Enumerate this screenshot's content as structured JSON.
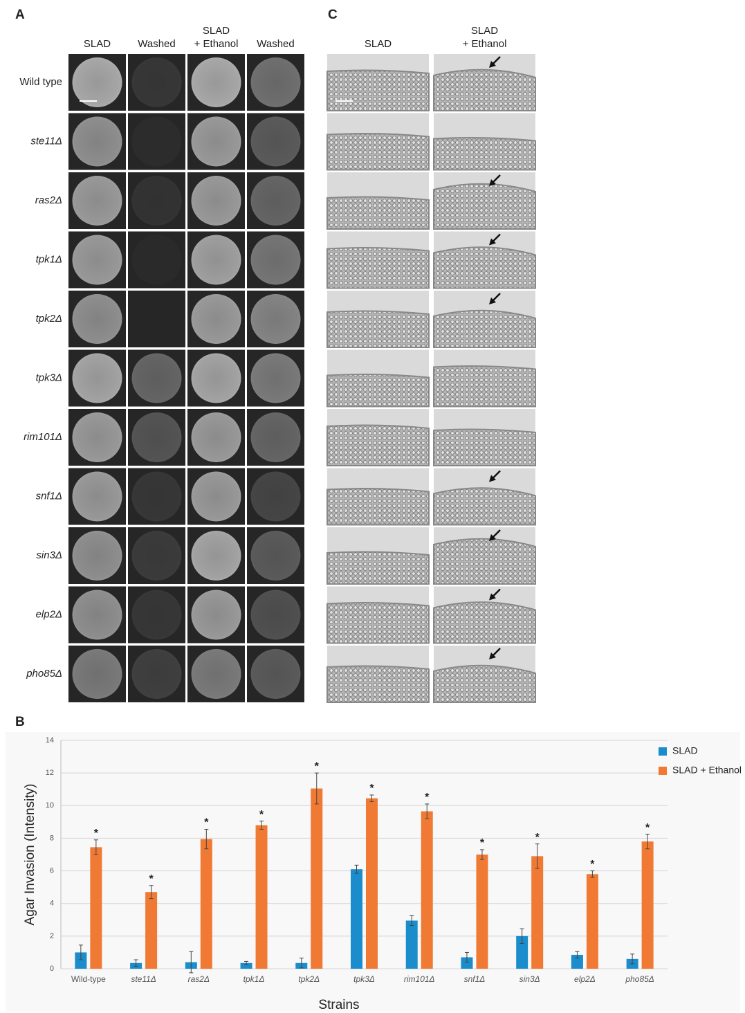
{
  "panel_a": {
    "label": "A",
    "columns": [
      [
        "SLAD"
      ],
      [
        "Washed"
      ],
      [
        "SLAD",
        "+ Ethanol"
      ],
      [
        "Washed"
      ]
    ],
    "rows": [
      "Wild type",
      "ste11Δ",
      "ras2Δ",
      "tpk1Δ",
      "tpk2Δ",
      "tpk3Δ",
      "rim101Δ",
      "snf1Δ",
      "sin3Δ",
      "elp2Δ",
      "pho85Δ"
    ]
  },
  "panel_b": {
    "label": "B"
  },
  "panel_c": {
    "label": "C",
    "columns": [
      [
        "SLAD"
      ],
      [
        "SLAD",
        "+ Ethanol"
      ]
    ]
  },
  "chart_data": {
    "type": "bar",
    "y_label": "Agar Invasion (Intensity)",
    "x_label": "Strains",
    "categories": [
      "Wild-type",
      "ste11Δ",
      "ras2Δ",
      "tpk1Δ",
      "tpk2Δ",
      "tpk3Δ",
      "rim101Δ",
      "snf1Δ",
      "sin3Δ",
      "elp2Δ",
      "pho85Δ"
    ],
    "series": [
      {
        "name": "SLAD",
        "color": "#1b8ccc",
        "values": [
          1.0,
          0.35,
          0.4,
          0.35,
          0.35,
          6.1,
          2.95,
          0.7,
          2.0,
          0.85,
          0.6
        ],
        "errors": [
          0.45,
          0.2,
          0.65,
          0.1,
          0.3,
          0.25,
          0.3,
          0.3,
          0.45,
          0.2,
          0.3
        ]
      },
      {
        "name": "SLAD + Ethanol",
        "color": "#f07a34",
        "values": [
          7.45,
          4.7,
          7.95,
          8.8,
          11.05,
          10.45,
          9.65,
          7.0,
          6.9,
          5.8,
          7.8
        ],
        "errors": [
          0.45,
          0.4,
          0.6,
          0.25,
          0.95,
          0.2,
          0.45,
          0.3,
          0.75,
          0.2,
          0.45
        ],
        "significance": [
          "*",
          "*",
          "*",
          "*",
          "*",
          "*",
          "*",
          "*",
          "*",
          "*",
          "*"
        ]
      }
    ],
    "ylim": [
      0,
      14
    ],
    "yticks": [
      0,
      2,
      4,
      6,
      8,
      10,
      12,
      14
    ],
    "grid": true,
    "legend": "top-right"
  }
}
